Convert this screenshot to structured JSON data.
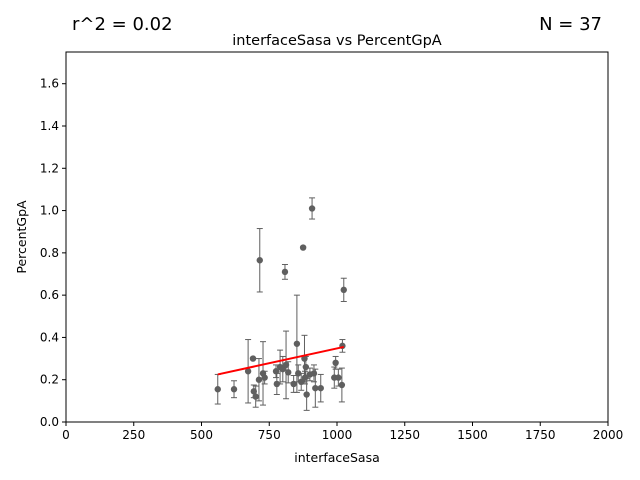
{
  "chart_data": {
    "type": "scatter",
    "title": "interfaceSasa vs PercentGpA",
    "xlabel": "interfaceSasa",
    "ylabel": "PercentGpA",
    "stat_left": "r^2 = 0.02",
    "stat_right": "N = 37",
    "xlim": [
      0,
      2000
    ],
    "ylim": [
      0,
      1.75
    ],
    "xticks": [
      0,
      250,
      500,
      750,
      1000,
      1250,
      1500,
      1750,
      2000
    ],
    "yticks": [
      0.0,
      0.2,
      0.4,
      0.6,
      0.8,
      1.0,
      1.2,
      1.4,
      1.6
    ],
    "grid": false,
    "point_color": "#5f5f5f",
    "fit_color": "#ff0000",
    "fit_line": {
      "x": [
        560,
        1025
      ],
      "y": [
        0.225,
        0.355
      ]
    },
    "points": [
      {
        "x": 560,
        "y": 0.155,
        "err": 0.07
      },
      {
        "x": 620,
        "y": 0.155,
        "err": 0.04
      },
      {
        "x": 672,
        "y": 0.24,
        "err": 0.15
      },
      {
        "x": 690,
        "y": 0.3,
        "err": 0.0
      },
      {
        "x": 693,
        "y": 0.145,
        "err": 0.03
      },
      {
        "x": 700,
        "y": 0.12,
        "err": 0.05
      },
      {
        "x": 712,
        "y": 0.2,
        "err": 0.1
      },
      {
        "x": 715,
        "y": 0.765,
        "err": 0.15
      },
      {
        "x": 727,
        "y": 0.23,
        "err": 0.15
      },
      {
        "x": 733,
        "y": 0.21,
        "err": 0.03
      },
      {
        "x": 775,
        "y": 0.24,
        "err": 0.03
      },
      {
        "x": 778,
        "y": 0.18,
        "err": 0.05
      },
      {
        "x": 790,
        "y": 0.26,
        "err": 0.08
      },
      {
        "x": 800,
        "y": 0.25,
        "err": 0.06
      },
      {
        "x": 808,
        "y": 0.71,
        "err": 0.035
      },
      {
        "x": 812,
        "y": 0.27,
        "err": 0.16
      },
      {
        "x": 820,
        "y": 0.235,
        "err": 0.05
      },
      {
        "x": 840,
        "y": 0.18,
        "err": 0.04
      },
      {
        "x": 852,
        "y": 0.37,
        "err": 0.23
      },
      {
        "x": 857,
        "y": 0.23,
        "err": 0.04
      },
      {
        "x": 868,
        "y": 0.19,
        "err": 0.04
      },
      {
        "x": 875,
        "y": 0.825,
        "err": 0.0
      },
      {
        "x": 880,
        "y": 0.3,
        "err": 0.11
      },
      {
        "x": 882,
        "y": 0.21,
        "err": 0.03
      },
      {
        "x": 885,
        "y": 0.26,
        "err": 0.05
      },
      {
        "x": 888,
        "y": 0.13,
        "err": 0.075
      },
      {
        "x": 900,
        "y": 0.225,
        "err": 0.03
      },
      {
        "x": 908,
        "y": 1.01,
        "err": 0.05
      },
      {
        "x": 915,
        "y": 0.23,
        "err": 0.04
      },
      {
        "x": 920,
        "y": 0.16,
        "err": 0.09
      },
      {
        "x": 940,
        "y": 0.16,
        "err": 0.065
      },
      {
        "x": 990,
        "y": 0.21,
        "err": 0.05
      },
      {
        "x": 995,
        "y": 0.28,
        "err": 0.03
      },
      {
        "x": 1005,
        "y": 0.21,
        "err": 0.04
      },
      {
        "x": 1018,
        "y": 0.175,
        "err": 0.08
      },
      {
        "x": 1020,
        "y": 0.36,
        "err": 0.03
      },
      {
        "x": 1025,
        "y": 0.625,
        "err": 0.055
      }
    ]
  }
}
